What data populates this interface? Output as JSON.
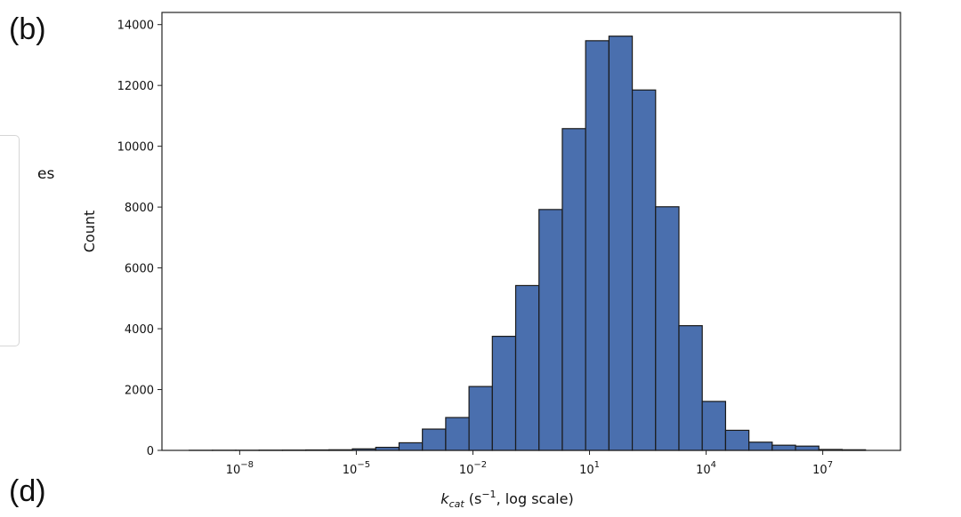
{
  "panel_labels": {
    "top": "(b)",
    "bottom": "(d)"
  },
  "legend_fragment": {
    "text": "es"
  },
  "chart_data": {
    "type": "bar",
    "title": "",
    "xlabel": {
      "main": "k",
      "subscript": "cat",
      "rest_before_sup": " (s",
      "superscript": "−1",
      "rest_after_sup": ", log scale)"
    },
    "ylabel": "Count",
    "x_scale": "log10",
    "xlim_log10": [
      -10,
      9
    ],
    "ylim": [
      0,
      14400
    ],
    "y_ticks": [
      0,
      2000,
      4000,
      6000,
      8000,
      10000,
      12000,
      14000
    ],
    "x_ticks": [
      {
        "base": "10",
        "exp": "−8",
        "value_log10": -8
      },
      {
        "base": "10",
        "exp": "−5",
        "value_log10": -5
      },
      {
        "base": "10",
        "exp": "−2",
        "value_log10": -2
      },
      {
        "base": "10",
        "exp": "1",
        "value_log10": 1
      },
      {
        "base": "10",
        "exp": "4",
        "value_log10": 4
      },
      {
        "base": "10",
        "exp": "7",
        "value_log10": 7
      }
    ],
    "bin_edges_log10": [
      -9.3,
      -8.7,
      -8.1,
      -7.5,
      -6.9,
      -6.3,
      -5.7,
      -5.1,
      -4.5,
      -3.9,
      -3.3,
      -2.7,
      -2.1,
      -1.5,
      -0.9,
      -0.3,
      0.3,
      0.9,
      1.5,
      2.1,
      2.7,
      3.3,
      3.9,
      4.5,
      5.1,
      5.7,
      6.3,
      6.9,
      7.5,
      8.1
    ],
    "values": [
      3,
      5,
      5,
      8,
      10,
      15,
      20,
      50,
      100,
      250,
      700,
      1080,
      2100,
      3750,
      5420,
      7920,
      10580,
      13470,
      13620,
      11850,
      8010,
      4100,
      1610,
      660,
      270,
      170,
      140,
      30,
      20
    ],
    "bar_color": "#4a6fae",
    "edge_color": "#1a1a1a",
    "grid": false
  }
}
